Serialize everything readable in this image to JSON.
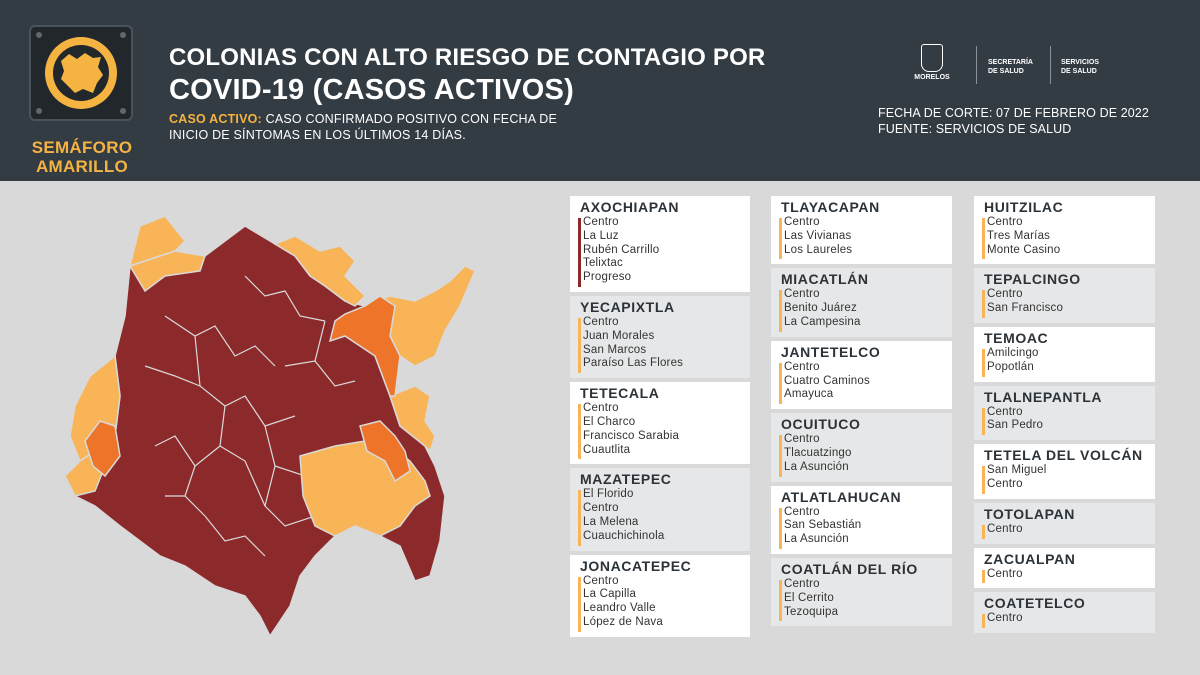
{
  "header": {
    "title_line1": "COLONIAS CON ALTO RIESGO DE CONTAGIO POR",
    "title_line2": "COVID-19 (CASOS ACTIVOS)",
    "caso_label": "CASO ACTIVO:",
    "caso_text_1": "CASO CONFIRMADO POSITIVO CON FECHA DE",
    "caso_text_2": "INICIO DE SÍNTOMAS EN LOS ÚLTIMOS 14 DÍAS.",
    "semaforo_line1": "SEMÁFORO",
    "semaforo_line2": "AMARILLO",
    "fecha_corte": "FECHA DE CORTE: 07 DE FEBRERO DE 2022",
    "fuente": "FUENTE: SERVICIOS DE SALUD",
    "logo_morelos": "MORELOS",
    "logo_secretaria_1": "SECRETARÍA",
    "logo_secretaria_2": "DE SALUD",
    "logo_servicios_1": "SERVICIOS",
    "logo_servicios_2": "DE SALUD"
  },
  "colors": {
    "header_bg": "#333b43",
    "page_bg": "#d9d9da",
    "high_risk": "#8c2a2b",
    "medium_risk": "#ee7429",
    "low_risk": "#f8b456",
    "accent": "#f5b342"
  },
  "municipios": [
    {
      "name": "AXOCHIAPAN",
      "risk": "high",
      "colonias": [
        "Centro",
        "La Luz",
        "Rubén Carrillo",
        "Telixtac",
        "Progreso"
      ]
    },
    {
      "name": "YECAPIXTLA",
      "risk": "low",
      "colonias": [
        "Centro",
        "Juan Morales",
        "San Marcos",
        "Paraíso Las Flores"
      ]
    },
    {
      "name": "TETECALA",
      "risk": "low",
      "colonias": [
        "Centro",
        "El Charco",
        "Francisco Sarabia",
        "Cuautlita"
      ]
    },
    {
      "name": "MAZATEPEC",
      "risk": "low",
      "colonias": [
        "El Florido",
        "Centro",
        "La Melena",
        "Cuauchichinola"
      ]
    },
    {
      "name": "JONACATEPEC",
      "risk": "low",
      "colonias": [
        "Centro",
        "La Capilla",
        "Leandro Valle",
        "López de Nava"
      ]
    },
    {
      "name": "TLAYACAPAN",
      "risk": "low",
      "colonias": [
        "Centro",
        "Las Vivianas",
        "Los Laureles"
      ]
    },
    {
      "name": "MIACATLÁN",
      "risk": "low",
      "colonias": [
        "Centro",
        "Benito Juárez",
        "La Campesina"
      ]
    },
    {
      "name": "JANTETELCO",
      "risk": "low",
      "colonias": [
        "Centro",
        "Cuatro Caminos",
        "Amayuca"
      ]
    },
    {
      "name": "OCUITUCO",
      "risk": "low",
      "colonias": [
        "Centro",
        "Tlacuatzingo",
        "La Asunción"
      ]
    },
    {
      "name": "ATLATLAHUCAN",
      "risk": "low",
      "colonias": [
        "Centro",
        "San Sebastián",
        "La Asunción"
      ]
    },
    {
      "name": "COATLÁN DEL RÍO",
      "risk": "low",
      "colonias": [
        "Centro",
        "El Cerrito",
        "Tezoquipa"
      ]
    },
    {
      "name": "HUITZILAC",
      "risk": "low",
      "colonias": [
        "Centro",
        "Tres Marías",
        "Monte Casino"
      ]
    },
    {
      "name": "TEPALCINGO",
      "risk": "low",
      "colonias": [
        "Centro",
        "San Francisco"
      ]
    },
    {
      "name": "TEMOAC",
      "risk": "low",
      "colonias": [
        "Amilcingo",
        "Popotlán"
      ]
    },
    {
      "name": "TLALNEPANTLA",
      "risk": "low",
      "colonias": [
        "Centro",
        "San Pedro"
      ]
    },
    {
      "name": "TETELA DEL VOLCÁN",
      "risk": "low",
      "colonias": [
        "San Miguel",
        "Centro"
      ]
    },
    {
      "name": "TOTOLAPAN",
      "risk": "low",
      "colonias": [
        "Centro"
      ]
    },
    {
      "name": "ZACUALPAN",
      "risk": "low",
      "colonias": [
        "Centro"
      ]
    },
    {
      "name": "COATETELCO",
      "risk": "low",
      "colonias": [
        "Centro"
      ]
    }
  ]
}
